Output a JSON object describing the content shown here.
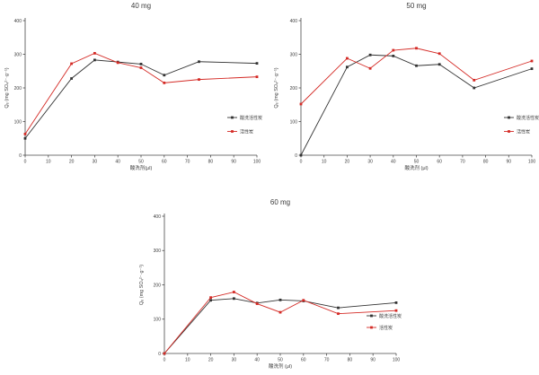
{
  "figure": {
    "background": "#ffffff"
  },
  "colors": {
    "axis": "#4a4a4a",
    "text": "#3c3c3c",
    "series_acid_washed": "#333333",
    "series_plain": "#d42a25"
  },
  "chart_data": [
    {
      "type": "line",
      "title": "40 mg",
      "xlabel": "酸洗剂(μl)",
      "ylabel": "Qₑ (mg SO₄²⁻·g⁻¹)",
      "xlim": [
        0,
        100
      ],
      "ylim": [
        0,
        400
      ],
      "xticks": [
        0,
        10,
        20,
        30,
        40,
        50,
        60,
        70,
        80,
        90,
        100
      ],
      "yticks": [
        0,
        100,
        200,
        300,
        400
      ],
      "grid": false,
      "legend_position": "right-center",
      "x": [
        0,
        20,
        30,
        40,
        50,
        60,
        75,
        100
      ],
      "series": [
        {
          "name": "酸洗活性炭",
          "color": "#333333",
          "values": [
            50,
            228,
            283,
            277,
            271,
            238,
            278,
            273
          ]
        },
        {
          "name": "活性炭",
          "color": "#d42a25",
          "values": [
            63,
            272,
            303,
            275,
            260,
            215,
            225,
            233
          ]
        }
      ]
    },
    {
      "type": "line",
      "title": "50 mg",
      "xlabel": "酸洗剂 (μl)",
      "ylabel": "Qₑ (mg SO₄²⁻·g⁻¹)",
      "xlim": [
        0,
        100
      ],
      "ylim": [
        0,
        400
      ],
      "xticks": [
        0,
        10,
        20,
        30,
        40,
        50,
        60,
        70,
        80,
        90,
        100
      ],
      "yticks": [
        0,
        100,
        200,
        300,
        400
      ],
      "grid": false,
      "legend_position": "right-center",
      "x": [
        0,
        20,
        30,
        40,
        50,
        60,
        75,
        100
      ],
      "series": [
        {
          "name": "酸洗活性炭",
          "color": "#333333",
          "values": [
            0,
            262,
            298,
            295,
            266,
            270,
            200,
            257
          ]
        },
        {
          "name": "活性炭",
          "color": "#d42a25",
          "values": [
            152,
            288,
            258,
            312,
            318,
            302,
            223,
            280
          ]
        }
      ]
    },
    {
      "type": "line",
      "title": "60 mg",
      "xlabel": "酸洗剂 (μl)",
      "ylabel": "Qₑ (mg SO₄²⁻·g⁻¹)",
      "xlim": [
        0,
        100
      ],
      "ylim": [
        0,
        400
      ],
      "xticks": [
        0,
        10,
        20,
        30,
        40,
        50,
        60,
        70,
        80,
        90,
        100
      ],
      "yticks": [
        0,
        100,
        200,
        300,
        400
      ],
      "grid": false,
      "legend_position": "right-lower",
      "x": [
        0,
        20,
        30,
        40,
        50,
        60,
        75,
        100
      ],
      "series": [
        {
          "name": "酸洗活性炭",
          "color": "#333333",
          "values": [
            0,
            155,
            160,
            147,
            156,
            153,
            133,
            148
          ]
        },
        {
          "name": "活性炭",
          "color": "#d42a25",
          "values": [
            0,
            163,
            179,
            145,
            120,
            155,
            116,
            125
          ]
        }
      ]
    }
  ]
}
